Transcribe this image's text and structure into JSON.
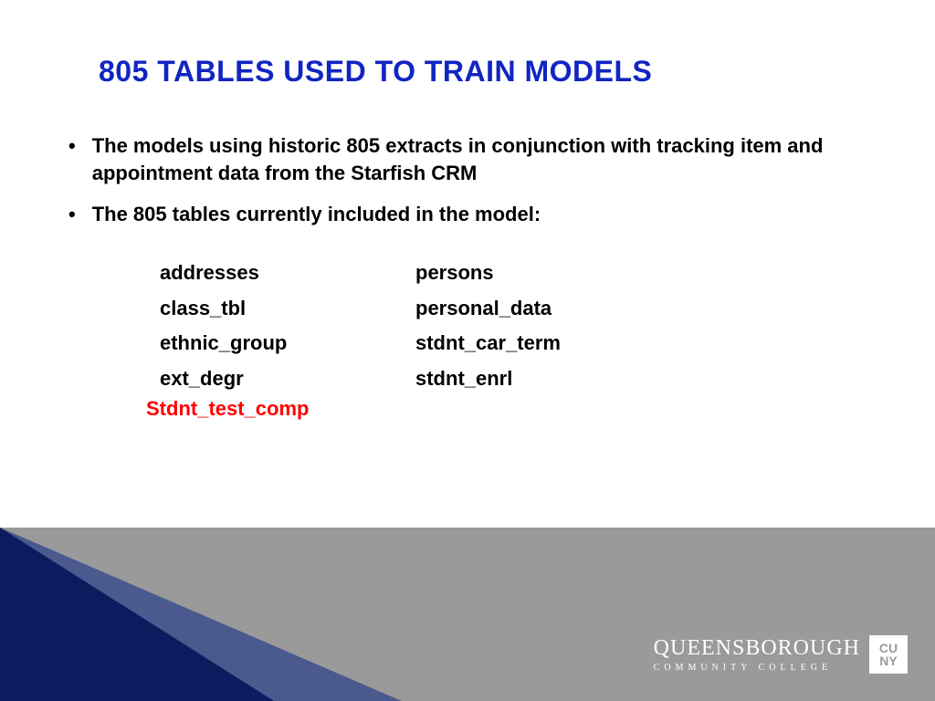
{
  "title": "805 TABLES USED TO TRAIN MODELS",
  "title_color": "#1125c2",
  "title_fontsize": 32,
  "bullets": [
    "The models using historic 805 extracts in conjunction with tracking item and appointment data from the Starfish CRM",
    "The 805 tables currently included in the model:"
  ],
  "bullet_fontsize": 22,
  "bullet_color": "#000000",
  "tables": {
    "col1": [
      "addresses",
      "class_tbl",
      "ethnic_group",
      "ext_degr"
    ],
    "col2": [
      "persons",
      "personal_data",
      "stdnt_car_term",
      "stdnt_enrl"
    ],
    "highlight": "Stdnt_test_comp",
    "highlight_color": "#ff0000",
    "text_color": "#000000",
    "fontsize": 22
  },
  "footer": {
    "bg_color": "#9a9a9a",
    "triangle_dark": "#0d1b5e",
    "triangle_mid": "#4a5a8f",
    "logo_main": "QUEENSBOROUGH",
    "logo_sub": "COMMUNITY COLLEGE",
    "badge_line1": "CU",
    "badge_line2": "NY",
    "logo_color": "#ffffff"
  }
}
